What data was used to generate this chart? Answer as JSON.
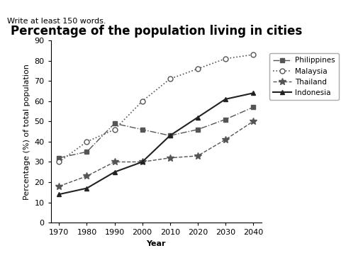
{
  "title": "Percentage of the population living in cities",
  "xlabel": "Year",
  "ylabel": "Percentage (%) of total population",
  "header_text": "Write at least 150 words.",
  "years": [
    1970,
    1980,
    1990,
    2000,
    2010,
    2020,
    2030,
    2040
  ],
  "philippines": [
    32,
    35,
    49,
    46,
    43,
    46,
    51,
    57
  ],
  "malaysia": [
    30,
    40,
    46,
    60,
    71,
    76,
    81,
    83
  ],
  "thailand": [
    18,
    23,
    30,
    30,
    32,
    33,
    41,
    50
  ],
  "indonesia": [
    14,
    17,
    25,
    30,
    43,
    52,
    61,
    64
  ],
  "ylim": [
    0,
    90
  ],
  "background_color": "#ffffff",
  "line_color": "#555555",
  "line_color_indonesia": "#222222",
  "title_fontsize": 12,
  "label_fontsize": 8,
  "tick_fontsize": 8,
  "header_fontsize": 8
}
